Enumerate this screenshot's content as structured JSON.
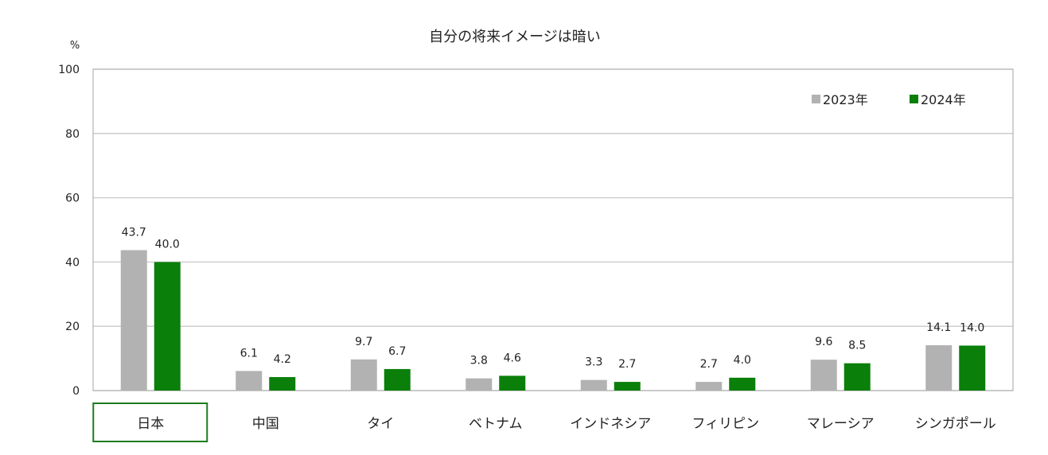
{
  "chart_data": {
    "type": "bar",
    "title": "自分の将来イメージは暗い",
    "yunit": "%",
    "ylim": [
      0,
      100
    ],
    "yticks": [
      0,
      20,
      40,
      60,
      80,
      100
    ],
    "grid": true,
    "legend_position": "top-right",
    "categories": [
      "日本",
      "中国",
      "タイ",
      "ベトナム",
      "インドネシア",
      "フィリピン",
      "マレーシア",
      "シンガポール"
    ],
    "highlighted_category": "日本",
    "series": [
      {
        "name": "2023年",
        "color": "#b2b2b2",
        "values": [
          43.7,
          6.1,
          9.7,
          3.8,
          3.3,
          2.7,
          9.6,
          14.1
        ],
        "labels": [
          "43.7",
          "6.1",
          "9.7",
          "3.8",
          "3.3",
          "2.7",
          "9.6",
          "14.1"
        ]
      },
      {
        "name": "2024年",
        "color": "#0a7f0a",
        "values": [
          40.0,
          4.2,
          6.7,
          4.6,
          2.7,
          4.0,
          8.5,
          14.0
        ],
        "labels": [
          "40.0",
          "4.2",
          "6.7",
          "4.6",
          "2.7",
          "4.0",
          "8.5",
          "14.0"
        ]
      }
    ],
    "colors": {
      "grid": "#c8c8c8",
      "axis": "#b8b8b8",
      "highlight_border": "#1e7b1e"
    }
  }
}
